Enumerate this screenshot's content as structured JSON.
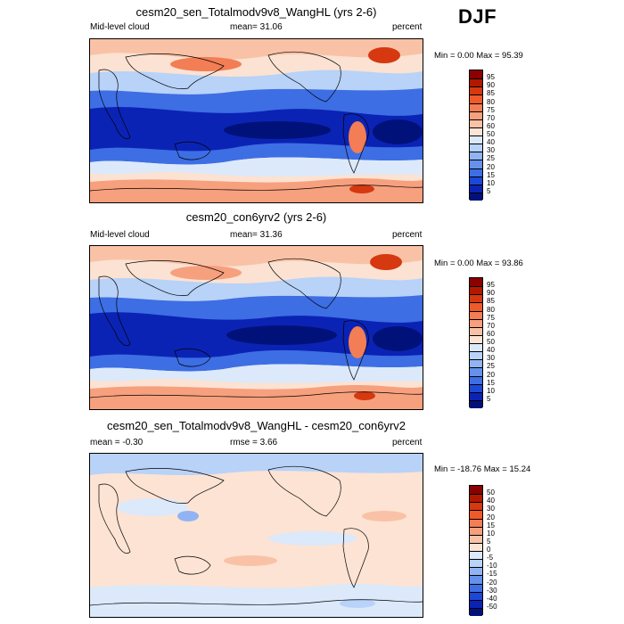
{
  "season_label": "DJF",
  "panels": [
    {
      "title": "cesm20_sen_Totalmodv9v8_WangHL (yrs 2-6)",
      "left_label": "Mid-level cloud",
      "center_label": "mean=  31.06",
      "right_label": "percent",
      "minmax": "Min =   0.00 Max =  95.39",
      "scale": "cloud"
    },
    {
      "title": "cesm20_con6yrv2 (yrs 2-6)",
      "left_label": "Mid-level cloud",
      "center_label": "mean=  31.36",
      "right_label": "percent",
      "minmax": "Min =   0.00 Max =  93.86",
      "scale": "cloud"
    },
    {
      "title": "cesm20_sen_Totalmodv9v8_WangHL - cesm20_con6yrv2",
      "left_label": "mean =  -0.30",
      "center_label": "rmse =   3.66",
      "right_label": "percent",
      "minmax": "Min = -18.76 Max =  15.24",
      "scale": "diff"
    }
  ],
  "chart_data": {
    "type": "heatmap",
    "variable": "Mid-level cloud",
    "units": "percent",
    "season": "DJF",
    "maps": [
      {
        "case": "cesm20_sen_Totalmodv9v8_WangHL (yrs 2-6)",
        "mean": 31.06,
        "min": 0.0,
        "max": 95.39
      },
      {
        "case": "cesm20_con6yrv2 (yrs 2-6)",
        "mean": 31.36,
        "min": 0.0,
        "max": 93.86
      },
      {
        "case": "cesm20_sen_Totalmodv9v8_WangHL - cesm20_con6yrv2",
        "mean": -0.3,
        "rmse": 3.66,
        "min": -18.76,
        "max": 15.24
      }
    ],
    "colorbars": {
      "cloud": {
        "levels": [
          "95",
          "90",
          "85",
          "80",
          "75",
          "70",
          "60",
          "50",
          "40",
          "30",
          "25",
          "20",
          "15",
          "10",
          "5"
        ],
        "colors": [
          "#8b0000",
          "#b21800",
          "#d63810",
          "#ee5a2a",
          "#f37d55",
          "#f7a07e",
          "#f9c2a6",
          "#fde3d3",
          "#dbe9fb",
          "#b8d2f8",
          "#90b4f3",
          "#6591eb",
          "#3d6ee4",
          "#1c48d8",
          "#0b23b4",
          "#00127a"
        ]
      },
      "diff": {
        "levels": [
          "50",
          "40",
          "30",
          "20",
          "15",
          "10",
          "5",
          "0",
          "-5",
          "-10",
          "-15",
          "-20",
          "-30",
          "-40",
          "-50"
        ],
        "colors": [
          "#8b0000",
          "#b21800",
          "#d63810",
          "#ee5a2a",
          "#f37d55",
          "#f7a07e",
          "#f9c2a6",
          "#fde3d3",
          "#dbe9fb",
          "#b8d2f8",
          "#90b4f3",
          "#6591eb",
          "#3d6ee4",
          "#1c48d8",
          "#0b23b4",
          "#00127a"
        ]
      }
    }
  }
}
